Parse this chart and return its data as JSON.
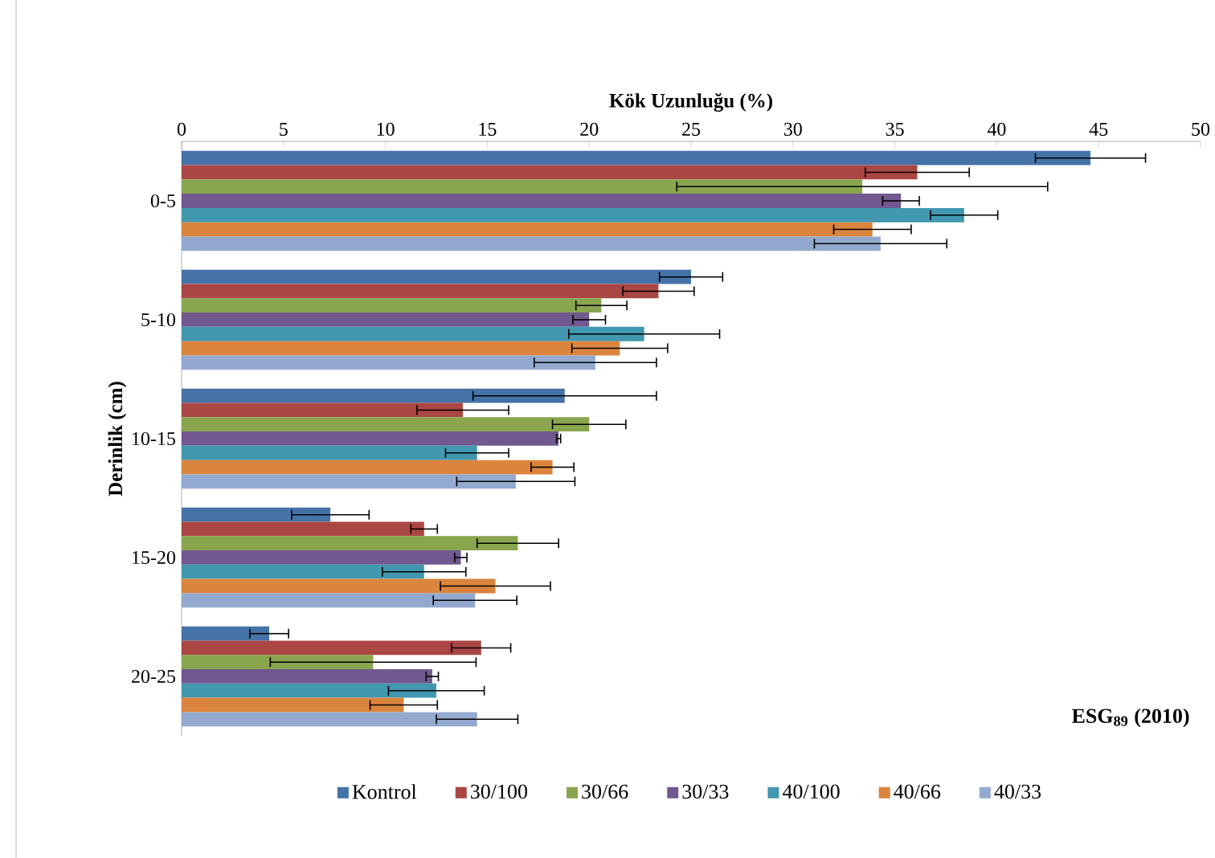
{
  "chart_data": {
    "type": "bar",
    "orientation": "horizontal",
    "xlabel": "Kök Uzunluğu (%)",
    "ylabel": "Derinlik (cm)",
    "annotations": [
      "ESG$_{89}$ (2010)"
    ],
    "categories": [
      "0-5",
      "5-10",
      "10-15",
      "15-20",
      "20-25"
    ],
    "xlim": [
      0,
      50
    ],
    "xticks": [
      0,
      5,
      10,
      15,
      20,
      25,
      30,
      35,
      40,
      45,
      50
    ],
    "grid": false,
    "legend": "bottom",
    "series": [
      {
        "name": "Kontrol",
        "color": "#4572a7",
        "values": [
          44.6,
          25.0,
          18.8,
          7.3,
          4.3
        ],
        "errors": [
          2.7,
          1.55,
          4.5,
          1.9,
          0.95
        ]
      },
      {
        "name": "30/100",
        "color": "#aa4643",
        "values": [
          36.1,
          23.4,
          13.8,
          11.9,
          14.7
        ],
        "errors": [
          2.55,
          1.75,
          2.25,
          0.65,
          1.45
        ]
      },
      {
        "name": "30/66",
        "color": "#89a54e",
        "values": [
          33.4,
          20.6,
          20.0,
          16.5,
          9.4
        ],
        "errors": [
          9.1,
          1.25,
          1.8,
          2.0,
          5.05
        ]
      },
      {
        "name": "30/33",
        "color": "#71588f",
        "values": [
          35.3,
          20.0,
          18.5,
          13.7,
          12.3
        ],
        "errors": [
          0.9,
          0.8,
          0.1,
          0.3,
          0.3
        ]
      },
      {
        "name": "40/100",
        "color": "#4198af",
        "values": [
          38.4,
          22.7,
          14.5,
          11.9,
          12.5
        ],
        "errors": [
          1.65,
          3.7,
          1.55,
          2.05,
          2.35
        ]
      },
      {
        "name": "40/66",
        "color": "#db843d",
        "values": [
          33.9,
          21.5,
          18.2,
          15.4,
          10.9
        ],
        "errors": [
          1.9,
          2.35,
          1.05,
          2.7,
          1.65
        ]
      },
      {
        "name": "40/33",
        "color": "#93a9cf",
        "values": [
          34.3,
          20.3,
          16.4,
          14.4,
          14.5
        ],
        "errors": [
          3.25,
          3.0,
          2.9,
          2.05,
          2.0
        ]
      }
    ]
  }
}
